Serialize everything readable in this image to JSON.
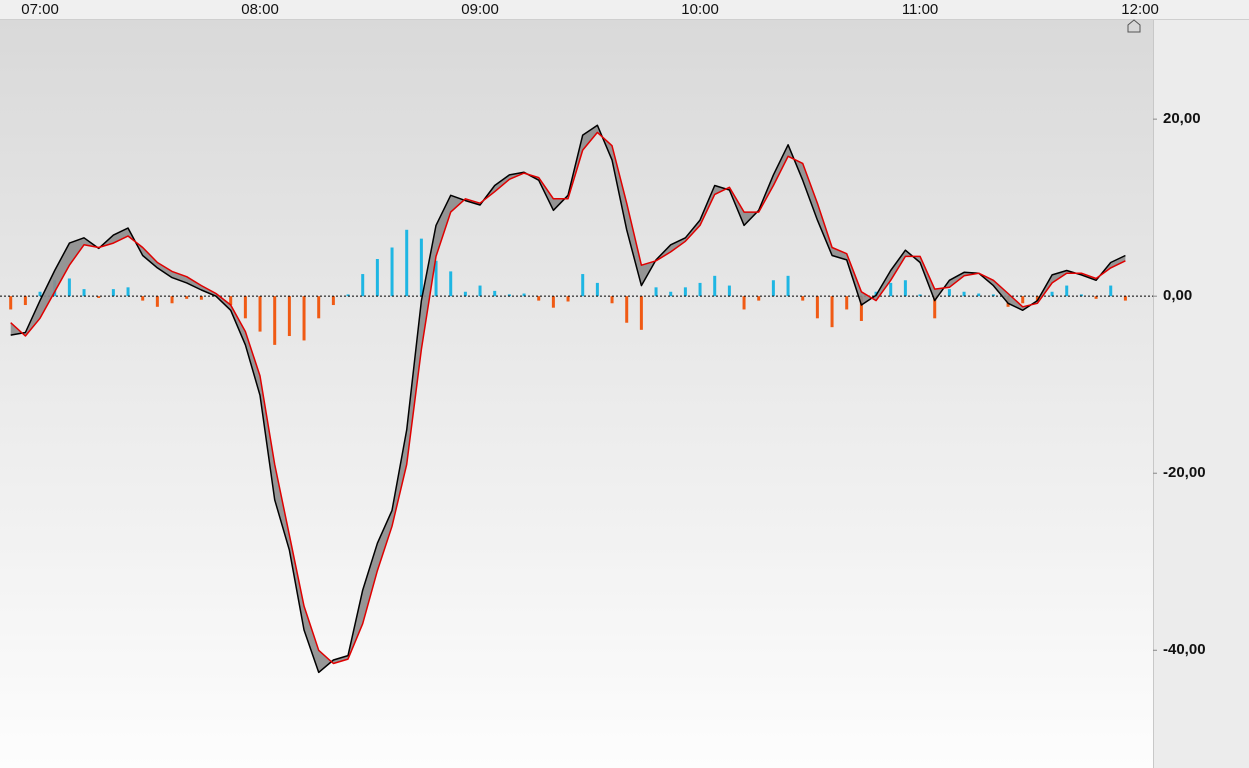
{
  "chart_data": {
    "type": "macd",
    "categories": [
      null,
      null,
      "07:00",
      null,
      null,
      null,
      null,
      null,
      null,
      null,
      null,
      null,
      null,
      null,
      null,
      null,
      null,
      "08:00",
      null,
      null,
      null,
      null,
      null,
      null,
      null,
      null,
      null,
      null,
      null,
      null,
      null,
      null,
      "09:00",
      null,
      null,
      null,
      null,
      null,
      null,
      null,
      null,
      null,
      null,
      null,
      null,
      null,
      null,
      "10:00",
      null,
      null,
      null,
      null,
      null,
      null,
      null,
      null,
      null,
      null,
      null,
      null,
      null,
      null,
      "11:00",
      null,
      null,
      null,
      null,
      null,
      null,
      null,
      null,
      null,
      null,
      null,
      null,
      null,
      null,
      "12:00"
    ],
    "series": [
      {
        "color": "#000000",
        "values": [
          -4.4,
          -4.1,
          -0.5,
          2.9,
          6.0,
          6.6,
          5.4,
          6.9,
          7.7,
          4.6,
          3.2,
          2.1,
          1.5,
          0.7,
          0,
          -1.6,
          -5.5,
          -11.2,
          -23,
          -28.7,
          -37.7,
          -42.5,
          -41.1,
          -40.6,
          -33.2,
          -27.9,
          -24.2,
          -15.1,
          -0.5,
          8.0,
          11.4,
          10.8,
          10.3,
          12.5,
          13.7,
          14.0,
          13.1,
          9.7,
          11.4,
          18.2,
          19.3,
          15.4,
          7.5,
          1.2,
          4.1,
          5.8,
          6.6,
          8.6,
          12.5,
          12.0,
          8.0,
          9.7,
          13.7,
          17.1,
          13.1,
          8.6,
          4.6,
          4.1,
          -1.0,
          0.1,
          2.9,
          5.2,
          3.8,
          -0.5,
          1.8,
          2.7,
          2.6,
          1.2,
          -0.8,
          -1.6,
          -0.5,
          2.4,
          2.9,
          2.4,
          1.8,
          3.8,
          4.6,
          null
        ]
      },
      {
        "color": "#e00000",
        "values": [
          -3.0,
          -4.5,
          -2.5,
          0.5,
          3.5,
          5.8,
          5.5,
          6.0,
          6.8,
          5.5,
          3.8,
          2.8,
          2.2,
          1.2,
          0.3,
          -1.0,
          -4.0,
          -9.0,
          -19,
          -27,
          -35,
          -40,
          -41.5,
          -41,
          -37,
          -31,
          -26,
          -19,
          -6,
          4.5,
          9.5,
          11.0,
          10.5,
          11.8,
          13.2,
          13.9,
          13.4,
          11,
          11,
          16.5,
          18.5,
          17,
          10.5,
          3.5,
          4.0,
          5.0,
          6.2,
          8.0,
          11.5,
          12.3,
          9.5,
          9.5,
          12.5,
          15.8,
          15.0,
          10.5,
          5.5,
          4.8,
          0.5,
          -0.5,
          1.8,
          4.5,
          4.5,
          0.8,
          1.0,
          2.3,
          2.6,
          1.8,
          0.3,
          -1.2,
          -0.8,
          1.5,
          2.6,
          2.6,
          2.0,
          3.2,
          4.0,
          null
        ]
      }
    ],
    "cloud_color": "#8c8c8c",
    "histogram": {
      "positive_color": "#1eb6e3",
      "negative_color": "#f05a14",
      "values": [
        -1.5,
        -1.0,
        0.5,
        1.8,
        2.0,
        0.8,
        -0.2,
        0.8,
        1.0,
        -0.5,
        -1.2,
        -0.8,
        -0.3,
        -0.4,
        0.2,
        -1.0,
        -2.5,
        -4.0,
        -5.5,
        -4.5,
        -5.0,
        -2.5,
        -1.0,
        0.2,
        2.5,
        4.2,
        5.5,
        7.5,
        6.5,
        4.0,
        2.8,
        0.5,
        1.2,
        0.6,
        0.2,
        0.3,
        -0.5,
        -1.3,
        -0.6,
        2.5,
        1.5,
        -0.8,
        -3.0,
        -3.8,
        1.0,
        0.5,
        1.0,
        1.5,
        2.3,
        1.2,
        -1.5,
        -0.5,
        1.8,
        2.3,
        -0.5,
        -2.5,
        -3.5,
        -1.5,
        -2.8,
        0.5,
        1.5,
        1.8,
        0.2,
        -2.5,
        0.8,
        0.5,
        0.3,
        0.2,
        -1.2,
        -0.8,
        -0.5,
        0.5,
        1.2,
        0.2,
        -0.3,
        1.2,
        -0.5,
        null
      ]
    },
    "ylim": [
      -53.3,
      31.2
    ],
    "yticks": [
      {
        "value": -40,
        "label": "-40,00"
      },
      {
        "value": -20,
        "label": "-20,00"
      },
      {
        "value": 0,
        "label": "0,00"
      },
      {
        "value": 20,
        "label": "20,00"
      }
    ],
    "zero_line": true
  }
}
